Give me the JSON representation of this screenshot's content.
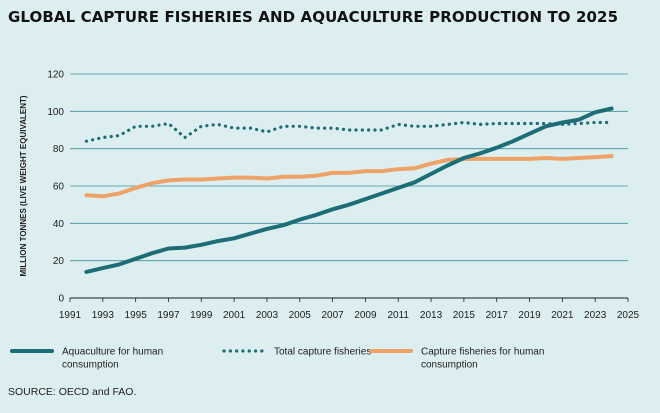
{
  "title": "GLOBAL CAPTURE FISHERIES AND AQUACULTURE PRODUCTION TO 2025",
  "source": "SOURCE: OECD and FAO.",
  "colors": {
    "background": "#ddeef1",
    "aquaculture": "#1d6d77",
    "total_capture": "#1d6d77",
    "capture_human": "#eea268",
    "grid": "#3f8d9b"
  },
  "chart_data": {
    "type": "line",
    "title": "GLOBAL CAPTURE FISHERIES AND AQUACULTURE PRODUCTION TO 2025",
    "ylabel": "MILLION TONNES (LIVE WEIGHT EQUIVALENT)",
    "xlabel": "",
    "xlim": [
      1991,
      2025
    ],
    "ylim": [
      0,
      120
    ],
    "x_ticks": [
      "1991",
      "1993",
      "1995",
      "1997",
      "1999",
      "2001",
      "2003",
      "2005",
      "2007",
      "2009",
      "2011",
      "2013",
      "2015",
      "2017",
      "2019",
      "2021",
      "2023",
      "2025"
    ],
    "y_ticks": [
      "0",
      "20",
      "40",
      "60",
      "80",
      "100",
      "120"
    ],
    "grid": true,
    "legend_position": "bottom",
    "x": [
      1992,
      1993,
      1994,
      1995,
      1996,
      1997,
      1998,
      1999,
      2000,
      2001,
      2002,
      2003,
      2004,
      2005,
      2006,
      2007,
      2008,
      2009,
      2010,
      2011,
      2012,
      2013,
      2014,
      2015,
      2016,
      2017,
      2018,
      2019,
      2020,
      2021,
      2022,
      2023,
      2024
    ],
    "series": [
      {
        "name": "Aquaculture for human consumption",
        "style": "solid",
        "values": [
          14,
          16,
          18,
          21,
          24,
          26.5,
          27,
          28.5,
          30.5,
          32,
          34.5,
          37,
          39,
          42,
          44.5,
          47.5,
          50,
          53,
          56,
          59,
          62,
          66.5,
          71,
          75,
          77.5,
          80.5,
          84,
          88,
          92,
          94,
          95.5,
          99.5,
          101.5
        ]
      },
      {
        "name": "Total capture fisheries",
        "style": "dotted",
        "values": [
          84,
          86,
          87,
          92,
          92,
          93.5,
          86,
          92,
          93,
          91,
          91,
          89,
          92,
          92,
          91,
          91,
          90,
          90,
          90,
          93,
          92,
          92,
          93,
          94,
          93,
          93.5,
          93.5,
          93.5,
          93.5,
          93,
          93.5,
          94,
          94
        ]
      },
      {
        "name": "Capture fisheries for human consumption",
        "style": "solid",
        "values": [
          55,
          54.5,
          56,
          59,
          61.5,
          63,
          63.5,
          63.5,
          64,
          64.5,
          64.5,
          64,
          65,
          65,
          65.5,
          67,
          67,
          68,
          68,
          69,
          69.5,
          72,
          74,
          74.5,
          74.5,
          74.5,
          74.5,
          74.5,
          75,
          74.5,
          75,
          75.5,
          76
        ]
      }
    ]
  }
}
